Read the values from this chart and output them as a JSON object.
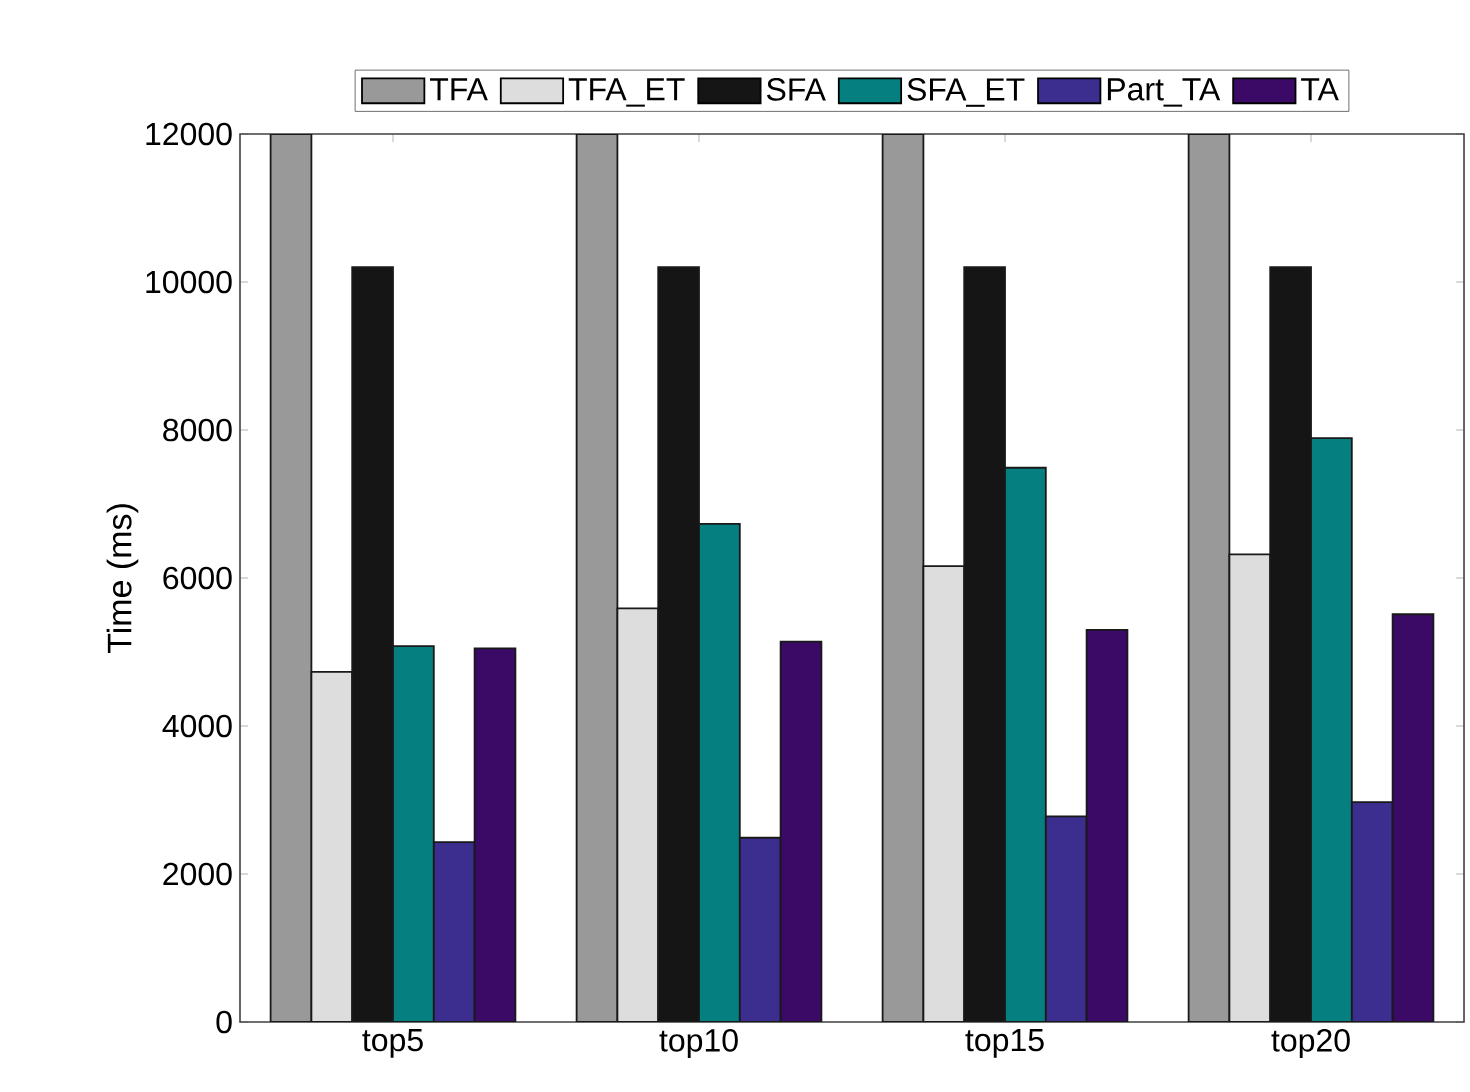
{
  "chart_data": {
    "type": "bar",
    "ylabel": "Time (ms)",
    "categories": [
      "top5",
      "top10",
      "top15",
      "top20"
    ],
    "series": [
      {
        "name": "TFA",
        "color": "#999999",
        "values": [
          12000,
          12000,
          12000,
          12000
        ]
      },
      {
        "name": "TFA_ET",
        "color": "#dddddd",
        "values": [
          4730,
          5590,
          6160,
          6320
        ]
      },
      {
        "name": "SFA",
        "color": "#151515",
        "values": [
          10200,
          10200,
          10200,
          10200
        ]
      },
      {
        "name": "SFA_ET",
        "color": "#057f7f",
        "values": [
          5080,
          6730,
          7490,
          7890
        ]
      },
      {
        "name": "Part_TA",
        "color": "#3b2e8f",
        "values": [
          2430,
          2490,
          2780,
          2970
        ]
      },
      {
        "name": "TA",
        "color": "#3a0a66",
        "values": [
          5050,
          5140,
          5300,
          5510
        ]
      }
    ],
    "ylim": [
      0,
      12000
    ],
    "yticks": [
      0,
      2000,
      4000,
      6000,
      8000,
      10000,
      12000
    ],
    "grid": false,
    "legend": "top"
  }
}
